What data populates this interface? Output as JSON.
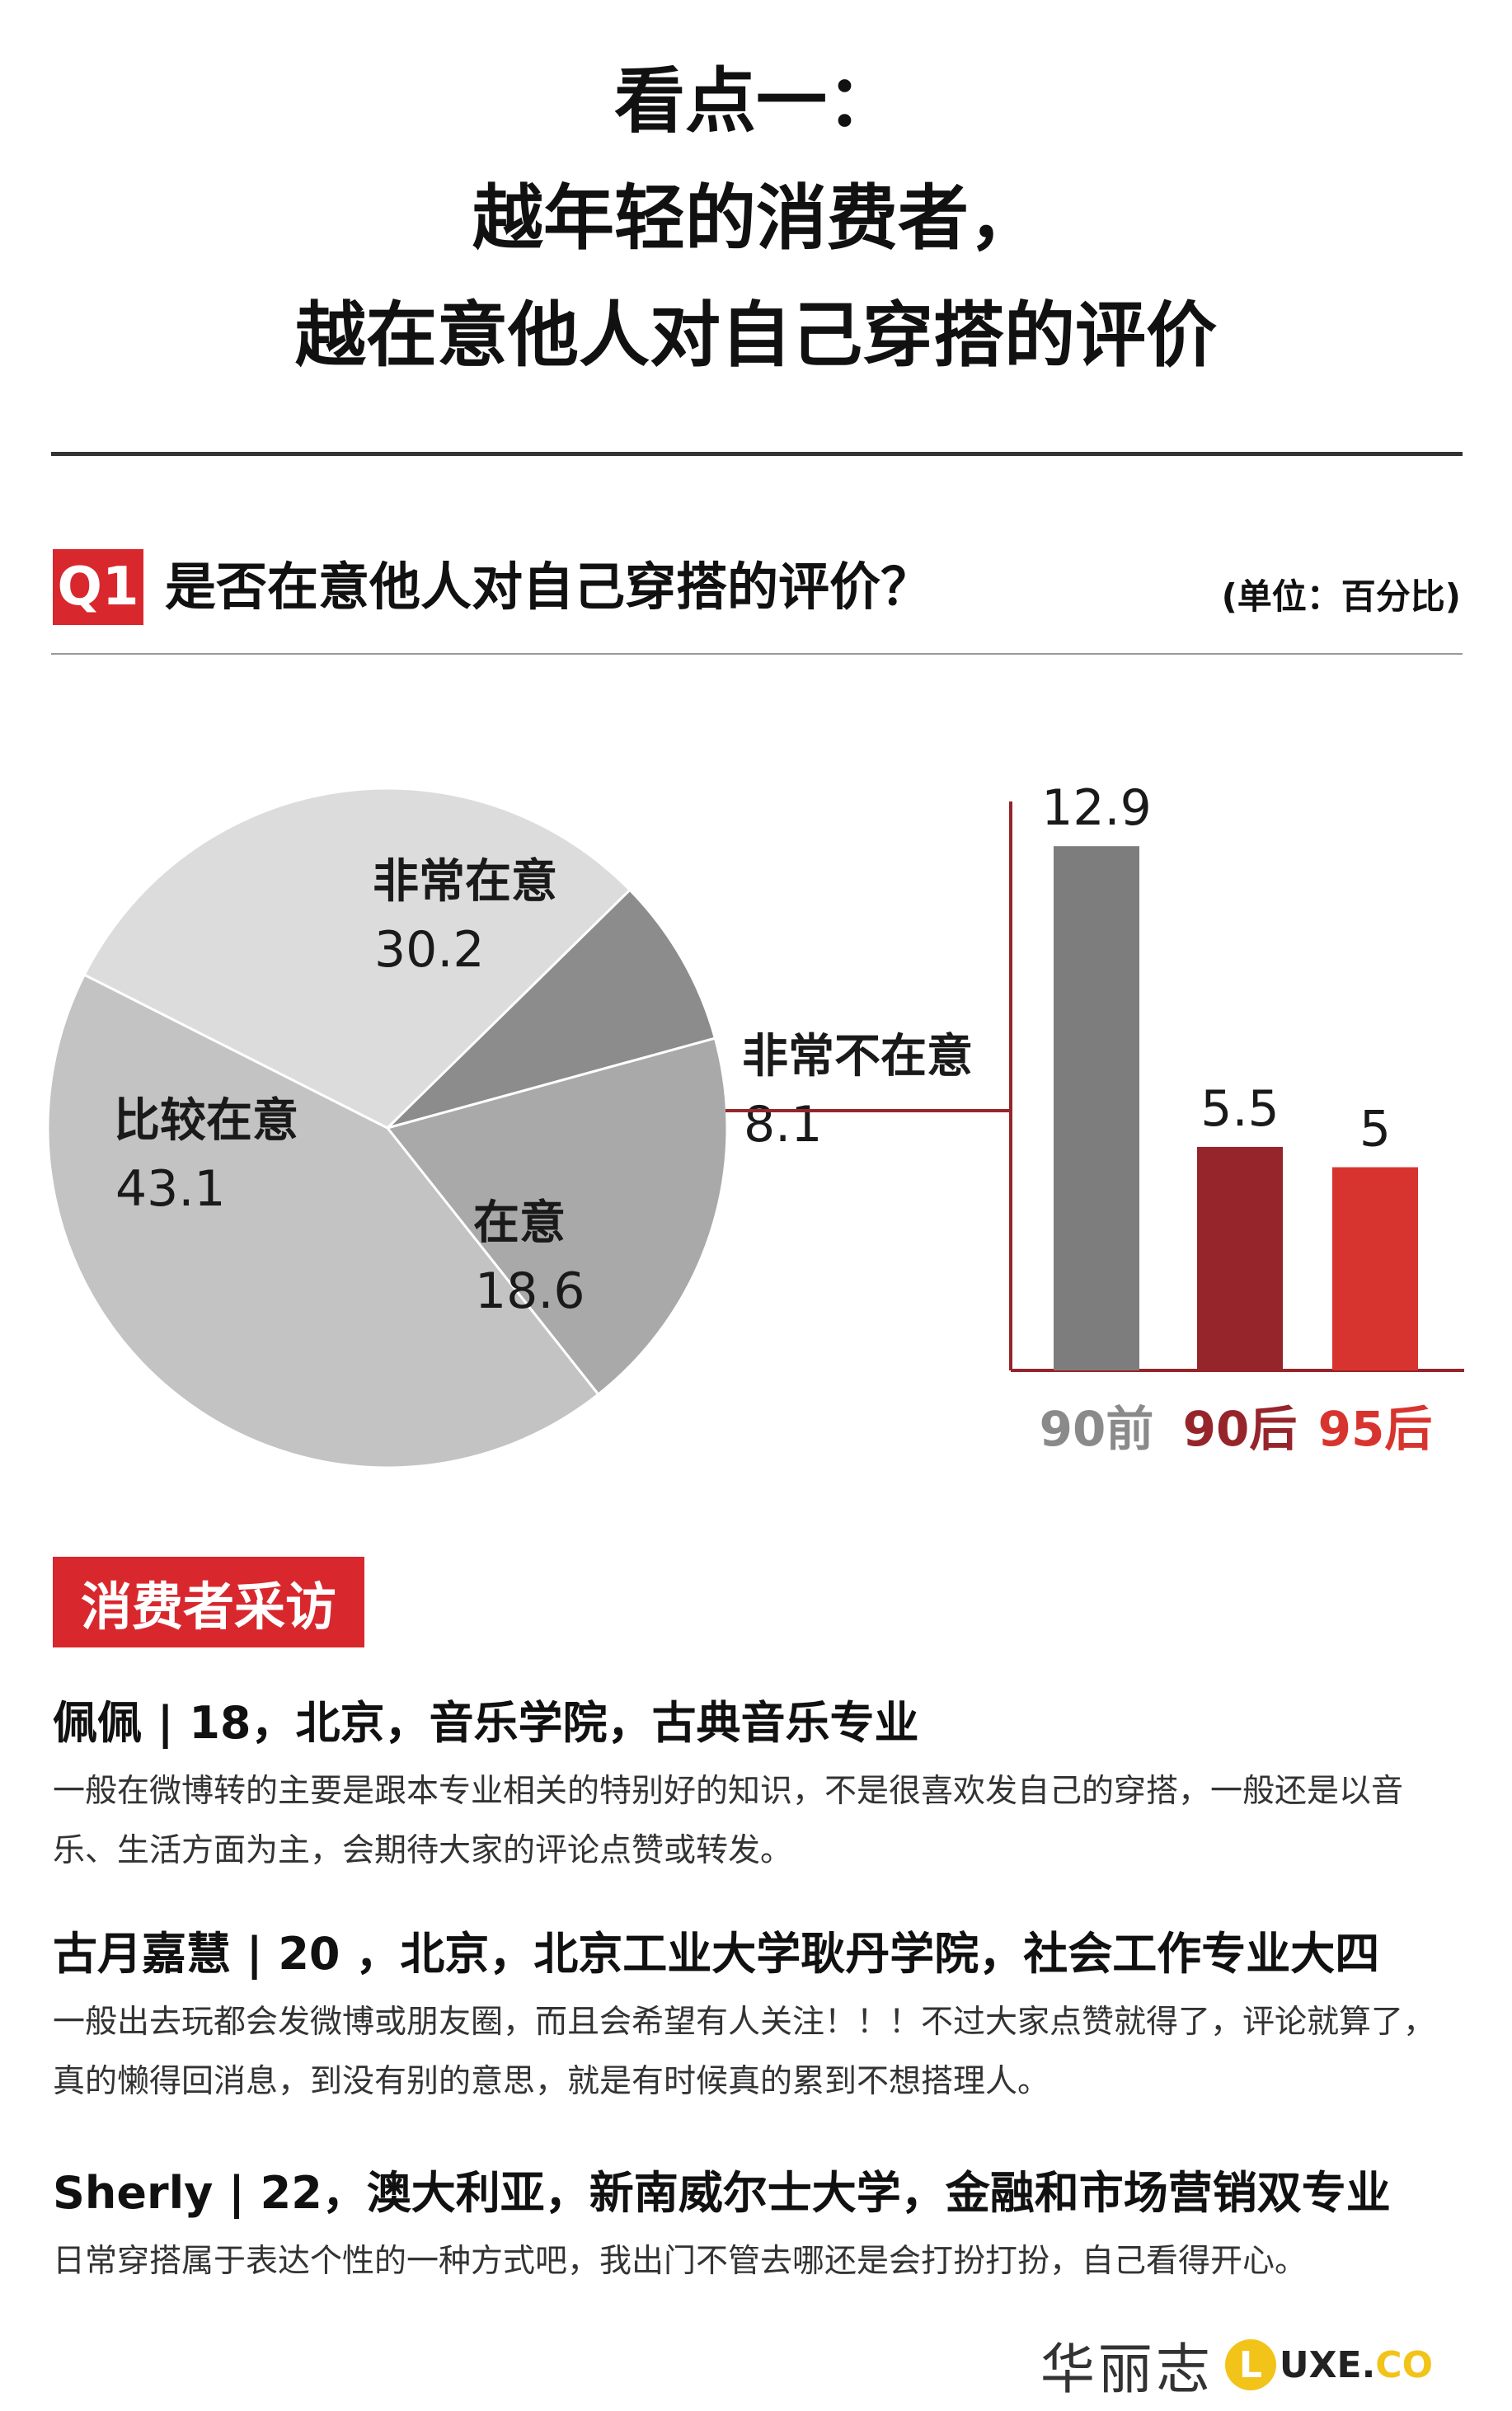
{
  "header": {
    "title_lines": [
      "看点一：",
      "越年轻的消费者，",
      "越在意他人对自己穿搭的评价"
    ]
  },
  "question": {
    "badge": "Q1",
    "text": "是否在意他人对自己穿搭的评价？",
    "unit": "(单位：百分比)"
  },
  "colors": {
    "accent": "#d9272e",
    "pie_very": "#dcdcdc",
    "pie_fairly": "#c3c3c3",
    "pie_care": "#a9a9a9",
    "pie_not": "#8c8c8c",
    "bar_pre90": "#7d7d7d",
    "bar_post90": "#96252b",
    "bar_post95": "#d8342f",
    "axis": "#96252b"
  },
  "chart_data": [
    {
      "type": "pie",
      "slices": [
        {
          "label": "非常在意",
          "value": 30.2
        },
        {
          "label": "非常不在意",
          "value": 8.1
        },
        {
          "label": "在意",
          "value": 18.6
        },
        {
          "label": "比较在意",
          "value": 43.1
        }
      ]
    },
    {
      "type": "bar",
      "categories": [
        "90前",
        "90后",
        "95后"
      ],
      "values": [
        12.9,
        5.5,
        5
      ],
      "ylim": [
        0,
        14
      ]
    }
  ],
  "interviews_section": {
    "badge": "消费者采访",
    "items": [
      {
        "who": "佩佩 | 18，北京，音乐学院，古典音乐专业",
        "said": "一般在微博转的主要是跟本专业相关的特别好的知识，不是很喜欢发自己的穿搭，一般还是以音乐、生活方面为主，会期待大家的评论点赞或转发。"
      },
      {
        "who": "古月嘉慧 | 20 ，北京，北京工业大学耿丹学院，社会工作专业大四",
        "said": "一般出去玩都会发微博或朋友圈，而且会希望有人关注！！！不过大家点赞就得了，评论就算了，真的懒得回消息，到没有别的意思，就是有时候真的累到不想搭理人。"
      },
      {
        "who": "Sherly | 22，澳大利亚，新南威尔士大学，金融和市场营销双专业",
        "said": "日常穿搭属于表达个性的一种方式吧，我出门不管去哪还是会打扮打扮，自己看得开心。"
      }
    ]
  },
  "footer": {
    "brand_cn": "华丽志",
    "logo_letter": "L",
    "logo_text": "UXE.",
    "logo_suffix": "CO"
  }
}
